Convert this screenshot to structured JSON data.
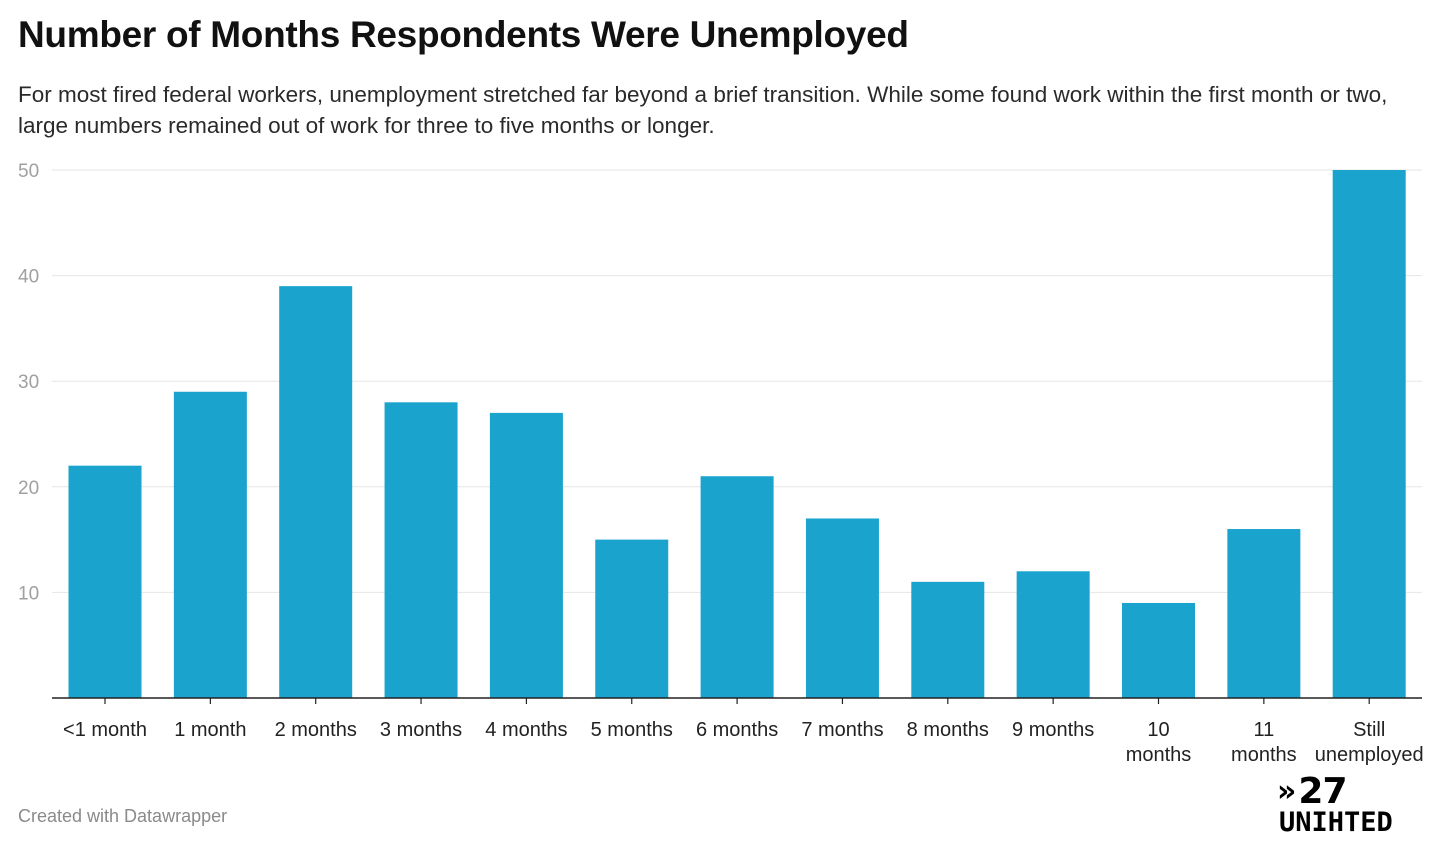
{
  "header": {
    "title": "Number of Months Respondents Were Unemployed",
    "subtitle": "For most fired federal workers, unemployment stretched far beyond a brief transition. While some found work within the first month or two, large numbers remained out of work for three to five months or longer."
  },
  "footer": {
    "credit": "Created with Datawrapper"
  },
  "logo": {
    "symbol": "»",
    "number": "27",
    "word": "UNIHTED"
  },
  "colors": {
    "bar": "#1aa3cd",
    "gridline": "#e6e6e6",
    "axis": "#222222",
    "tick_label": "#a0a0a0"
  },
  "chart_data": {
    "type": "bar",
    "title": "Number of Months Respondents Were Unemployed",
    "xlabel": "",
    "ylabel": "",
    "categories": [
      [
        "<1 month"
      ],
      [
        "1 month"
      ],
      [
        "2 months"
      ],
      [
        "3 months"
      ],
      [
        "4 months"
      ],
      [
        "5 months"
      ],
      [
        "6 months"
      ],
      [
        "7 months"
      ],
      [
        "8 months"
      ],
      [
        "9 months"
      ],
      [
        "10",
        "months"
      ],
      [
        "11",
        "months"
      ],
      [
        "Still",
        "unemployed"
      ]
    ],
    "values": [
      22,
      29,
      39,
      28,
      27,
      15,
      21,
      17,
      11,
      12,
      9,
      16,
      50
    ],
    "ylim": [
      0,
      50
    ],
    "yticks": [
      10,
      20,
      30,
      40,
      50
    ],
    "grid": true,
    "legend": "none"
  }
}
